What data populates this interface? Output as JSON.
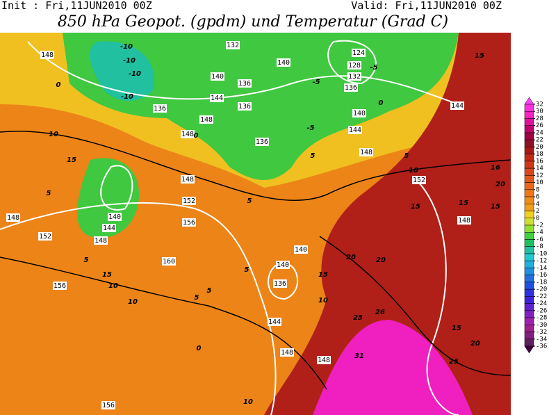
{
  "header": {
    "init": "Init : Fri,11JUN2010 00Z",
    "valid": "Valid: Fri,11JUN2010 00Z",
    "title": "850 hPa Geopot. (gpdm) und Temperatur (Grad C)"
  },
  "colorbar": {
    "ticks": [
      32,
      30,
      28,
      26,
      24,
      22,
      20,
      18,
      16,
      14,
      12,
      10,
      8,
      6,
      4,
      2,
      0,
      -2,
      -4,
      -6,
      -8,
      -10,
      -12,
      -14,
      -16,
      -18,
      -20,
      -22,
      -24,
      -26,
      -28,
      -30,
      -32,
      -34,
      -36
    ],
    "colors": [
      "#ff40ff",
      "#ff30e0",
      "#ff20c0",
      "#e0109a",
      "#c00070",
      "#a00040",
      "#901028",
      "#a81818",
      "#c02818",
      "#d03818",
      "#d84818",
      "#e05818",
      "#e86818",
      "#f07818",
      "#f08c18",
      "#f0a018",
      "#f0d020",
      "#d0e030",
      "#90e030",
      "#40d040",
      "#20c060",
      "#20c0a0",
      "#20c8d0",
      "#20b0e0",
      "#2090e0",
      "#2070e0",
      "#2050e0",
      "#3030e0",
      "#4020e0",
      "#6020d0",
      "#8020c0",
      "#a020b0",
      "#a02090",
      "#802080",
      "#602060",
      "#400040"
    ]
  },
  "geopotential_labels": [
    148,
    132,
    140,
    124,
    128,
    132,
    136,
    140,
    136,
    144,
    136,
    136,
    148,
    148,
    144,
    140,
    148,
    152,
    148,
    152,
    156,
    160,
    140,
    144,
    148,
    152,
    156,
    140,
    140,
    136,
    144,
    148,
    148,
    156,
    144,
    148,
    136,
    148
  ],
  "temperature_labels": [
    -10,
    -10,
    -10,
    -10,
    0,
    10,
    15,
    5,
    5,
    15,
    10,
    10,
    5,
    0,
    5,
    5,
    10,
    15,
    20,
    20,
    25,
    26,
    31,
    15,
    15,
    20,
    16,
    15,
    15,
    20,
    25,
    10,
    5,
    0,
    -5,
    -5,
    -5,
    5,
    10,
    0,
    5,
    15
  ]
}
